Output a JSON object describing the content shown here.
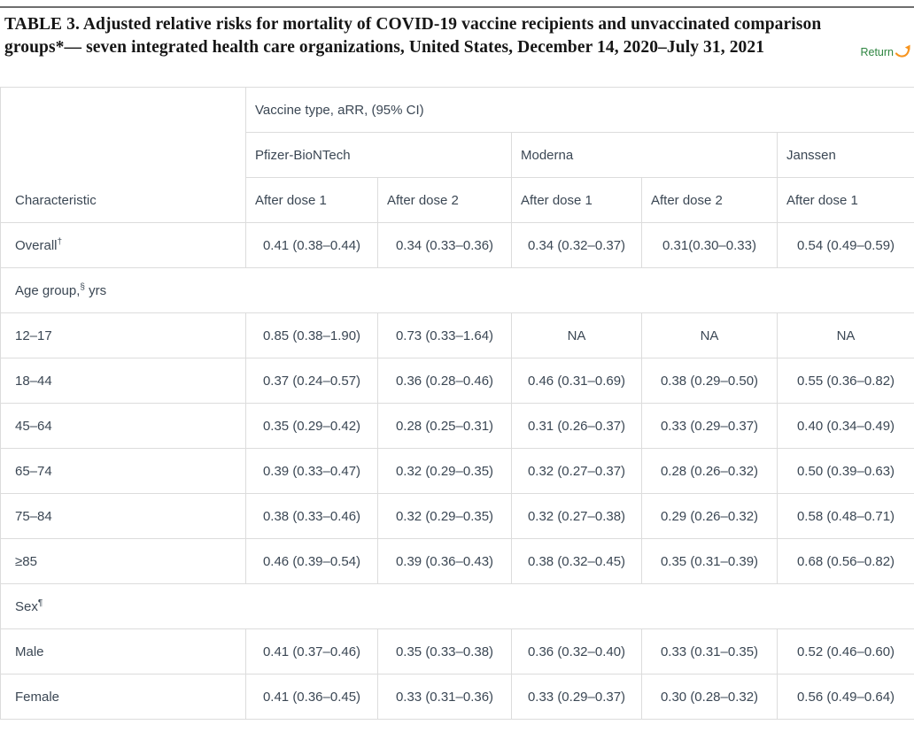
{
  "title": "TABLE 3. Adjusted relative risks for mortality of COVID-19 vaccine recipients and unvaccinated comparison groups*— seven integrated health care organizations, United States, December 14, 2020–July 31, 2021",
  "return_link": {
    "label": "Return",
    "icon": "curved-return-arrow-icon",
    "text_color": "#2e8540",
    "arrow_color": "#f7941e"
  },
  "colors": {
    "border": "#dcdcdc",
    "table_text": "#3b4754",
    "title_text": "#161616",
    "top_rule": "#6e6e6e"
  },
  "table": {
    "characteristic_header": "Characteristic",
    "group_header": "Vaccine type, aRR, (95% CI)",
    "vaccines": [
      {
        "name": "Pfizer-BioNTech",
        "span": 2
      },
      {
        "name": "Moderna",
        "span": 2
      },
      {
        "name": "Janssen",
        "span": 1
      }
    ],
    "dose_headers": [
      "After dose 1",
      "After dose 2",
      "After dose 1",
      "After dose 2",
      "After dose 1"
    ],
    "rows": [
      {
        "type": "data",
        "label": "Overall",
        "sup": "†",
        "suffix": "",
        "values": [
          "0.41 (0.38–0.44)",
          "0.34 (0.33–0.36)",
          "0.34 (0.32–0.37)",
          "0.31(0.30–0.33)",
          "0.54 (0.49–0.59)"
        ]
      },
      {
        "type": "section",
        "label": "Age group,",
        "sup": "§",
        "suffix": " yrs"
      },
      {
        "type": "data",
        "label": "12–17",
        "sup": "",
        "suffix": "",
        "values": [
          "0.85 (0.38–1.90)",
          "0.73 (0.33–1.64)",
          "NA",
          "NA",
          "NA"
        ]
      },
      {
        "type": "data",
        "label": "18–44",
        "sup": "",
        "suffix": "",
        "values": [
          "0.37 (0.24–0.57)",
          "0.36 (0.28–0.46)",
          "0.46 (0.31–0.69)",
          "0.38 (0.29–0.50)",
          "0.55 (0.36–0.82)"
        ]
      },
      {
        "type": "data",
        "label": "45–64",
        "sup": "",
        "suffix": "",
        "values": [
          "0.35 (0.29–0.42)",
          "0.28 (0.25–0.31)",
          "0.31 (0.26–0.37)",
          "0.33 (0.29–0.37)",
          "0.40 (0.34–0.49)"
        ]
      },
      {
        "type": "data",
        "label": "65–74",
        "sup": "",
        "suffix": "",
        "values": [
          "0.39 (0.33–0.47)",
          "0.32 (0.29–0.35)",
          "0.32 (0.27–0.37)",
          "0.28 (0.26–0.32)",
          "0.50 (0.39–0.63)"
        ]
      },
      {
        "type": "data",
        "label": "75–84",
        "sup": "",
        "suffix": "",
        "values": [
          "0.38 (0.33–0.46)",
          "0.32 (0.29–0.35)",
          "0.32 (0.27–0.38)",
          "0.29 (0.26–0.32)",
          "0.58 (0.48–0.71)"
        ]
      },
      {
        "type": "data",
        "label": "≥85",
        "sup": "",
        "suffix": "",
        "values": [
          "0.46 (0.39–0.54)",
          "0.39 (0.36–0.43)",
          "0.38 (0.32–0.45)",
          "0.35 (0.31–0.39)",
          "0.68 (0.56–0.82)"
        ]
      },
      {
        "type": "section",
        "label": "Sex",
        "sup": "¶",
        "suffix": ""
      },
      {
        "type": "data",
        "label": "Male",
        "sup": "",
        "suffix": "",
        "values": [
          "0.41 (0.37–0.46)",
          "0.35 (0.33–0.38)",
          "0.36 (0.32–0.40)",
          "0.33 (0.31–0.35)",
          "0.52 (0.46–0.60)"
        ]
      },
      {
        "type": "data",
        "label": "Female",
        "sup": "",
        "suffix": "",
        "values": [
          "0.41 (0.36–0.45)",
          "0.33 (0.31–0.36)",
          "0.33 (0.29–0.37)",
          "0.30 (0.28–0.32)",
          "0.56 (0.49–0.64)"
        ]
      }
    ]
  }
}
